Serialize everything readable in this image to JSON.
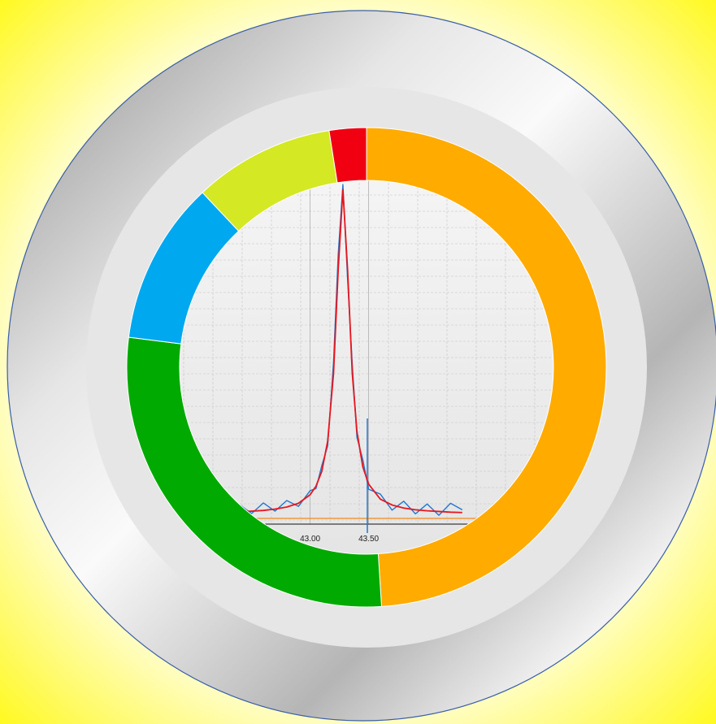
{
  "chart_data": [
    {
      "type": "donut",
      "categories": [
        null,
        null,
        null,
        null,
        null
      ],
      "values": [
        49,
        28,
        11,
        9.5,
        2.5
      ],
      "colors": [
        "#ffab00",
        "#00aa00",
        "#00a8ef",
        "#d4e824",
        "#f00010"
      ]
    },
    {
      "type": "line",
      "x": [
        42.2,
        42.3,
        42.4,
        42.5,
        42.6,
        42.7,
        42.8,
        42.9,
        43.0,
        43.05,
        43.1,
        43.15,
        43.2,
        43.24,
        43.28,
        43.32,
        43.36,
        43.4,
        43.45,
        43.5,
        43.6,
        43.7,
        43.8,
        43.9,
        44.0,
        44.1,
        44.2,
        44.3
      ],
      "series": [
        {
          "color": "#1f78d1",
          "values": [
            4.8,
            2.9,
            5.6,
            3.1,
            6.2,
            3.8,
            6.9,
            5.2,
            9.8,
            10.4,
            17.2,
            22.9,
            47.5,
            79.1,
            99.5,
            71.8,
            46.9,
            25.4,
            18.9,
            10.2,
            8.8,
            4.1,
            6.7,
            3.0,
            5.9,
            2.6,
            6.1,
            4.2
          ]
        },
        {
          "color": "#e8161e",
          "values": [
            3.4,
            3.5,
            3.6,
            3.8,
            4.0,
            4.4,
            5.0,
            6.1,
            8.6,
            11.1,
            15.5,
            24.3,
            44.2,
            74.6,
            98,
            74.6,
            44.2,
            27.1,
            16.8,
            11.7,
            7.3,
            5.6,
            4.7,
            4.2,
            3.9,
            3.7,
            3.5,
            3.4
          ]
        }
      ],
      "xlim": [
        41.6,
        45.1
      ],
      "ylim": [
        0,
        100
      ],
      "xticks": [
        {
          "value": 43,
          "label": "43.00"
        },
        {
          "value": 43.5,
          "label": "43.50"
        }
      ],
      "grid": true
    }
  ]
}
